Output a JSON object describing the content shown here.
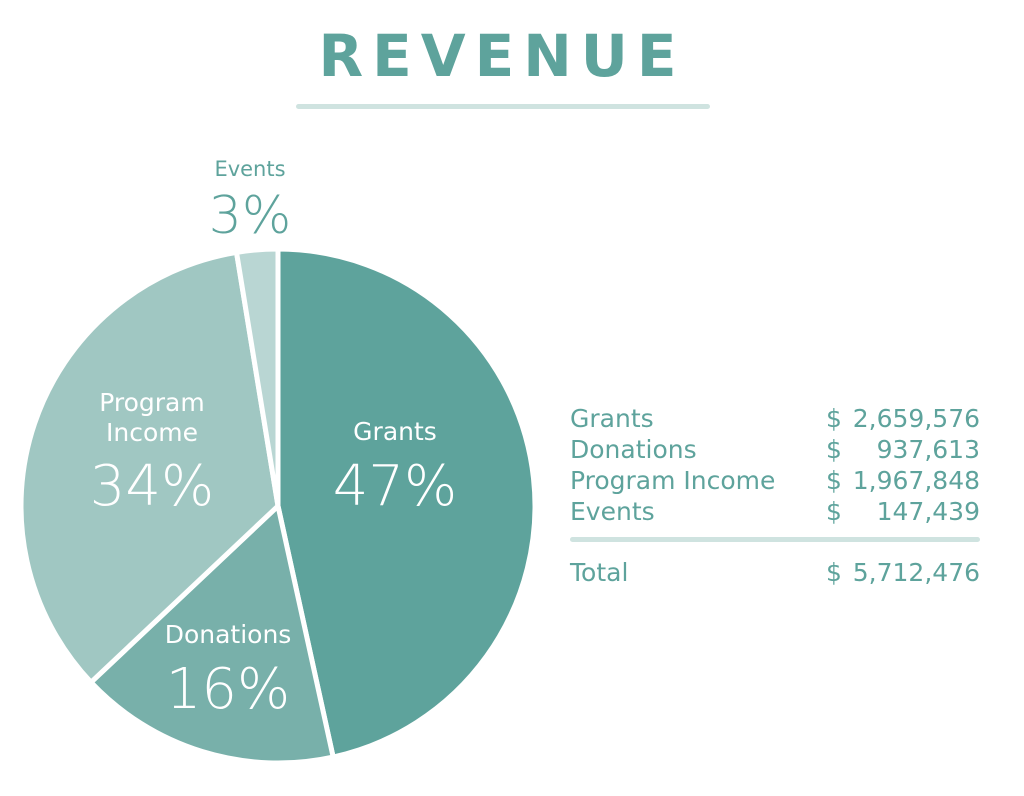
{
  "title": "REVENUE",
  "chart_data": {
    "type": "pie",
    "title": "REVENUE",
    "slices": [
      {
        "name": "Grants",
        "percent_label": "47%",
        "value": 2659576,
        "color": "#5ea39c",
        "label_color": "#ffffff"
      },
      {
        "name": "Donations",
        "percent_label": "16%",
        "value": 937613,
        "color": "#78b0aa",
        "label_color": "#ffffff"
      },
      {
        "name": "Program Income",
        "percent_label": "34%",
        "value": 1967848,
        "color": "#a0c7c2",
        "label_color": "#ffffff"
      },
      {
        "name": "Events",
        "percent_label": "3%",
        "value": 147439,
        "color": "#b9d6d3",
        "label_color": "#5ea39c"
      }
    ]
  },
  "table": {
    "rows": [
      {
        "label": "Grants",
        "currency": "$",
        "amount": "2,659,576"
      },
      {
        "label": "Donations",
        "currency": "$",
        "amount": "937,613"
      },
      {
        "label": "Program Income",
        "currency": "$",
        "amount": "1,967,848"
      },
      {
        "label": "Events",
        "currency": "$",
        "amount": "147,439"
      }
    ],
    "total": {
      "label": "Total",
      "currency": "$",
      "amount": "5,712,476"
    }
  }
}
